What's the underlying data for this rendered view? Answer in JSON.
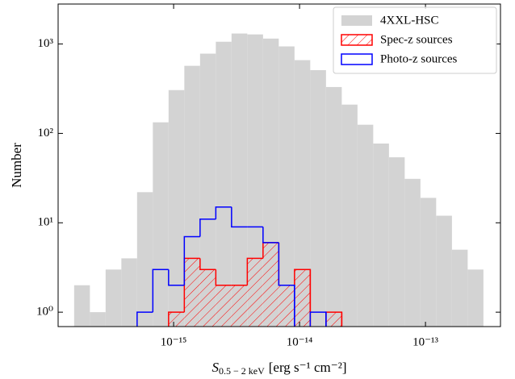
{
  "chart_data": {
    "type": "histogram",
    "ylabel": "Number",
    "xlabel": {
      "symbol": "S",
      "subscript": "0.5 − 2 keV",
      "units": "[erg s⁻¹ cm⁻²]"
    },
    "xscale": "log",
    "yscale": "log",
    "xlim": [
      1.21e-16,
      3.94e-13
    ],
    "ylim": [
      0.69,
      2800
    ],
    "xticks": [
      {
        "value": 1e-15,
        "label": "10⁻¹⁵"
      },
      {
        "value": 1e-14,
        "label": "10⁻¹⁴"
      },
      {
        "value": 1e-13,
        "label": "10⁻¹³"
      }
    ],
    "yticks": [
      {
        "value": 1,
        "label": "10⁰"
      },
      {
        "value": 10,
        "label": "10¹"
      },
      {
        "value": 100,
        "label": "10²"
      },
      {
        "value": 1000,
        "label": "10³"
      }
    ],
    "legend": "upper right",
    "bins": [
      1.622e-16,
      2.163e-16,
      2.884e-16,
      3.846e-16,
      5.129e-16,
      6.839e-16,
      9.12e-16,
      1.216e-15,
      1.622e-15,
      2.163e-15,
      2.884e-15,
      3.846e-15,
      5.129e-15,
      6.839e-15,
      9.12e-15,
      1.216e-14,
      1.622e-14,
      2.163e-14,
      2.884e-14,
      3.846e-14,
      5.129e-14,
      6.839e-14,
      9.12e-14,
      1.216e-13,
      1.622e-13,
      2.163e-13,
      2.884e-13
    ],
    "series": [
      {
        "name": "4XXL-HSC",
        "color": "#d3d3d3",
        "histtype": "stepfilled",
        "values": [
          2,
          1,
          3,
          4,
          22,
          133,
          305,
          570,
          780,
          1060,
          1310,
          1280,
          1150,
          940,
          660,
          510,
          330,
          210,
          125,
          77,
          54,
          31,
          19,
          12,
          5,
          3
        ]
      },
      {
        "name": "Spec-z sources",
        "color": "#ff0000",
        "histtype": "step",
        "hatch": true,
        "values": [
          0,
          0,
          0,
          0,
          0,
          0,
          1,
          4,
          3,
          2,
          2,
          4,
          6,
          2,
          3,
          0,
          1,
          0,
          0,
          0,
          0,
          0,
          0,
          0,
          0,
          0
        ]
      },
      {
        "name": "Photo-z sources",
        "color": "#0000ff",
        "histtype": "step",
        "values": [
          0,
          0,
          0,
          0,
          1,
          3,
          2,
          7,
          11,
          15,
          9,
          9,
          6,
          2,
          0,
          1,
          0,
          0,
          0,
          0,
          0,
          0,
          0,
          0,
          0,
          0
        ]
      }
    ]
  }
}
